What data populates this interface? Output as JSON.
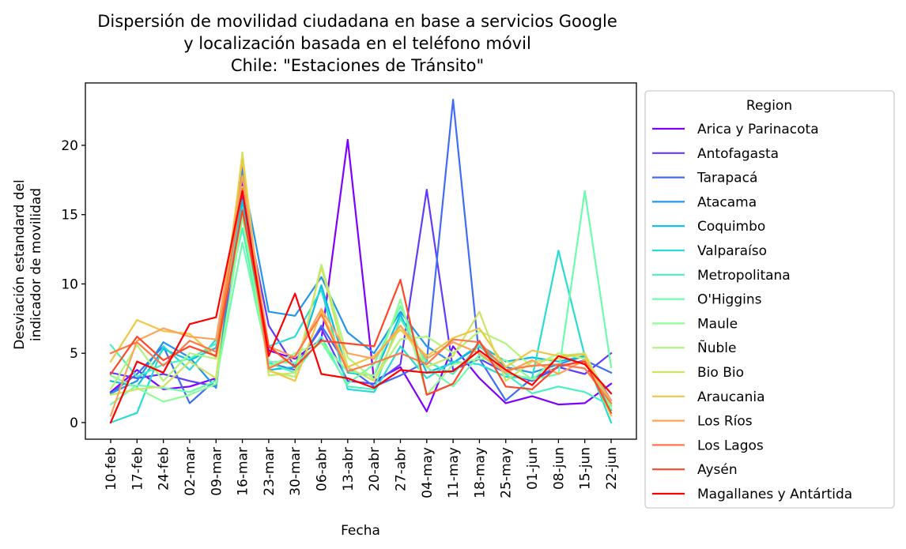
{
  "chart_data": {
    "type": "line",
    "title": [
      "Dispersión de movilidad ciudadana en base a servicios Google",
      "y localización basada en el teléfono móvil",
      "Chile: \"Estaciones de Tránsito\""
    ],
    "xlabel": "Fecha",
    "ylabel": [
      "Desviación estandard del",
      "indicador de movilidad"
    ],
    "categories": [
      "10-feb",
      "17-feb",
      "24-feb",
      "02-mar",
      "09-mar",
      "16-mar",
      "23-mar",
      "30-mar",
      "06-abr",
      "13-abr",
      "20-abr",
      "27-abr",
      "04-may",
      "11-may",
      "18-may",
      "25-may",
      "01-jun",
      "08-jun",
      "15-jun",
      "22-jun"
    ],
    "yticks": [
      0,
      5,
      10,
      15,
      20
    ],
    "ylim": [
      -1.2,
      24.5
    ],
    "legend": {
      "title": "Region",
      "placement": "outside-right"
    },
    "grid": false,
    "series": [
      {
        "name": "Arica y Parinacota",
        "color": "#8000ff",
        "values": [
          2.2,
          3.8,
          2.4,
          2.6,
          3.2,
          17.5,
          5.2,
          4.6,
          6.0,
          20.4,
          3.0,
          4.0,
          0.8,
          5.5,
          3.2,
          1.4,
          1.9,
          1.3,
          1.4,
          2.8
        ]
      },
      {
        "name": "Antofagasta",
        "color": "#623cf9",
        "values": [
          3.6,
          3.2,
          3.5,
          3.0,
          2.6,
          16.5,
          7.0,
          4.0,
          6.8,
          3.0,
          2.8,
          4.2,
          16.8,
          3.8,
          4.6,
          3.6,
          3.0,
          4.0,
          3.5,
          5.0
        ]
      },
      {
        "name": "Tarapacá",
        "color": "#426cf4",
        "values": [
          2.1,
          3.5,
          5.5,
          1.4,
          3.1,
          18.4,
          4.3,
          3.8,
          7.0,
          4.0,
          2.6,
          3.4,
          4.4,
          23.3,
          4.6,
          1.6,
          3.2,
          4.0,
          4.5,
          3.6
        ]
      },
      {
        "name": "Atacama",
        "color": "#2296ec",
        "values": [
          2.1,
          3.0,
          5.8,
          4.7,
          2.5,
          18.0,
          8.0,
          7.7,
          10.5,
          6.5,
          5.0,
          8.0,
          5.5,
          4.3,
          5.5,
          4.0,
          3.6,
          4.2,
          4.8,
          1.6
        ]
      },
      {
        "name": "Coquimbo",
        "color": "#06bfe2",
        "values": [
          3.0,
          2.6,
          5.3,
          4.5,
          5.4,
          16.0,
          3.8,
          4.0,
          9.9,
          3.6,
          3.4,
          7.8,
          3.6,
          4.3,
          5.6,
          4.4,
          4.7,
          4.4,
          4.8,
          0.9
        ]
      },
      {
        "name": "Valparaíso",
        "color": "#27dcd4",
        "values": [
          0.0,
          0.7,
          5.5,
          3.8,
          6.0,
          15.5,
          5.5,
          6.2,
          9.6,
          2.4,
          2.2,
          5.5,
          3.2,
          4.4,
          4.2,
          3.3,
          3.2,
          12.4,
          4.8,
          0.0
        ]
      },
      {
        "name": "Metropolitana",
        "color": "#49f0c1",
        "values": [
          5.6,
          3.3,
          4.2,
          4.6,
          5.7,
          14.0,
          4.3,
          3.6,
          6.2,
          2.6,
          2.4,
          7.5,
          4.4,
          3.5,
          5.6,
          3.5,
          2.1,
          2.6,
          2.2,
          1.2
        ]
      },
      {
        "name": "O'Higgins",
        "color": "#6cfcac",
        "values": [
          1.3,
          2.7,
          2.5,
          2.2,
          3.0,
          13.0,
          4.4,
          4.3,
          5.8,
          2.8,
          4.2,
          8.4,
          4.0,
          2.6,
          4.9,
          3.6,
          3.1,
          3.5,
          16.7,
          4.0
        ]
      },
      {
        "name": "Maule",
        "color": "#8efd95",
        "values": [
          3.4,
          2.5,
          1.5,
          2.0,
          2.8,
          14.8,
          4.0,
          5.0,
          5.8,
          3.7,
          3.4,
          8.9,
          2.0,
          4.2,
          4.6,
          4.5,
          3.1,
          4.8,
          5.0,
          1.0
        ]
      },
      {
        "name": "Ñuble",
        "color": "#b0f57c",
        "values": [
          2.4,
          5.6,
          3.0,
          5.0,
          4.6,
          17.0,
          3.7,
          3.3,
          11.4,
          4.7,
          3.1,
          6.0,
          6.2,
          5.0,
          6.6,
          5.7,
          4.0,
          5.0,
          4.6,
          0.5
        ]
      },
      {
        "name": "Bio Bio",
        "color": "#d2e262",
        "values": [
          2.0,
          2.4,
          2.6,
          4.4,
          3.2,
          19.5,
          3.4,
          3.6,
          11.2,
          4.0,
          3.0,
          7.0,
          4.0,
          4.8,
          8.0,
          3.0,
          4.4,
          4.6,
          5.0,
          1.3
        ]
      },
      {
        "name": "Araucania",
        "color": "#f0c646",
        "values": [
          4.4,
          7.4,
          6.6,
          6.4,
          4.7,
          19.0,
          3.8,
          3.0,
          8.0,
          4.0,
          4.8,
          6.7,
          4.8,
          6.1,
          6.8,
          4.0,
          5.2,
          4.8,
          4.9,
          0.5
        ]
      },
      {
        "name": "Los Ríos",
        "color": "#ffa356",
        "values": [
          0.5,
          5.9,
          6.8,
          6.2,
          6.0,
          17.8,
          5.5,
          4.7,
          8.2,
          5.0,
          4.6,
          7.0,
          4.6,
          5.8,
          5.0,
          3.6,
          4.5,
          3.5,
          4.5,
          1.6
        ]
      },
      {
        "name": "Los Lagos",
        "color": "#ff7848",
        "values": [
          5.0,
          5.8,
          4.1,
          5.9,
          5.1,
          16.9,
          3.9,
          4.8,
          7.8,
          3.7,
          4.3,
          5.0,
          4.2,
          6.0,
          5.8,
          3.8,
          4.1,
          4.2,
          3.9,
          1.4
        ]
      },
      {
        "name": "Aysén",
        "color": "#ff4628",
        "values": [
          3.5,
          6.2,
          4.5,
          5.5,
          4.8,
          15.3,
          5.5,
          4.0,
          5.9,
          5.7,
          5.5,
          10.3,
          2.0,
          2.8,
          5.9,
          2.6,
          2.4,
          4.1,
          4.4,
          0.7
        ]
      },
      {
        "name": "Magallanes y Antártida",
        "color": "#ff0000",
        "values": [
          0.0,
          4.4,
          3.6,
          7.1,
          7.6,
          16.7,
          4.8,
          9.3,
          3.5,
          3.2,
          2.5,
          3.8,
          3.6,
          3.7,
          5.2,
          3.8,
          2.7,
          4.8,
          4.2,
          2.1
        ]
      }
    ]
  }
}
